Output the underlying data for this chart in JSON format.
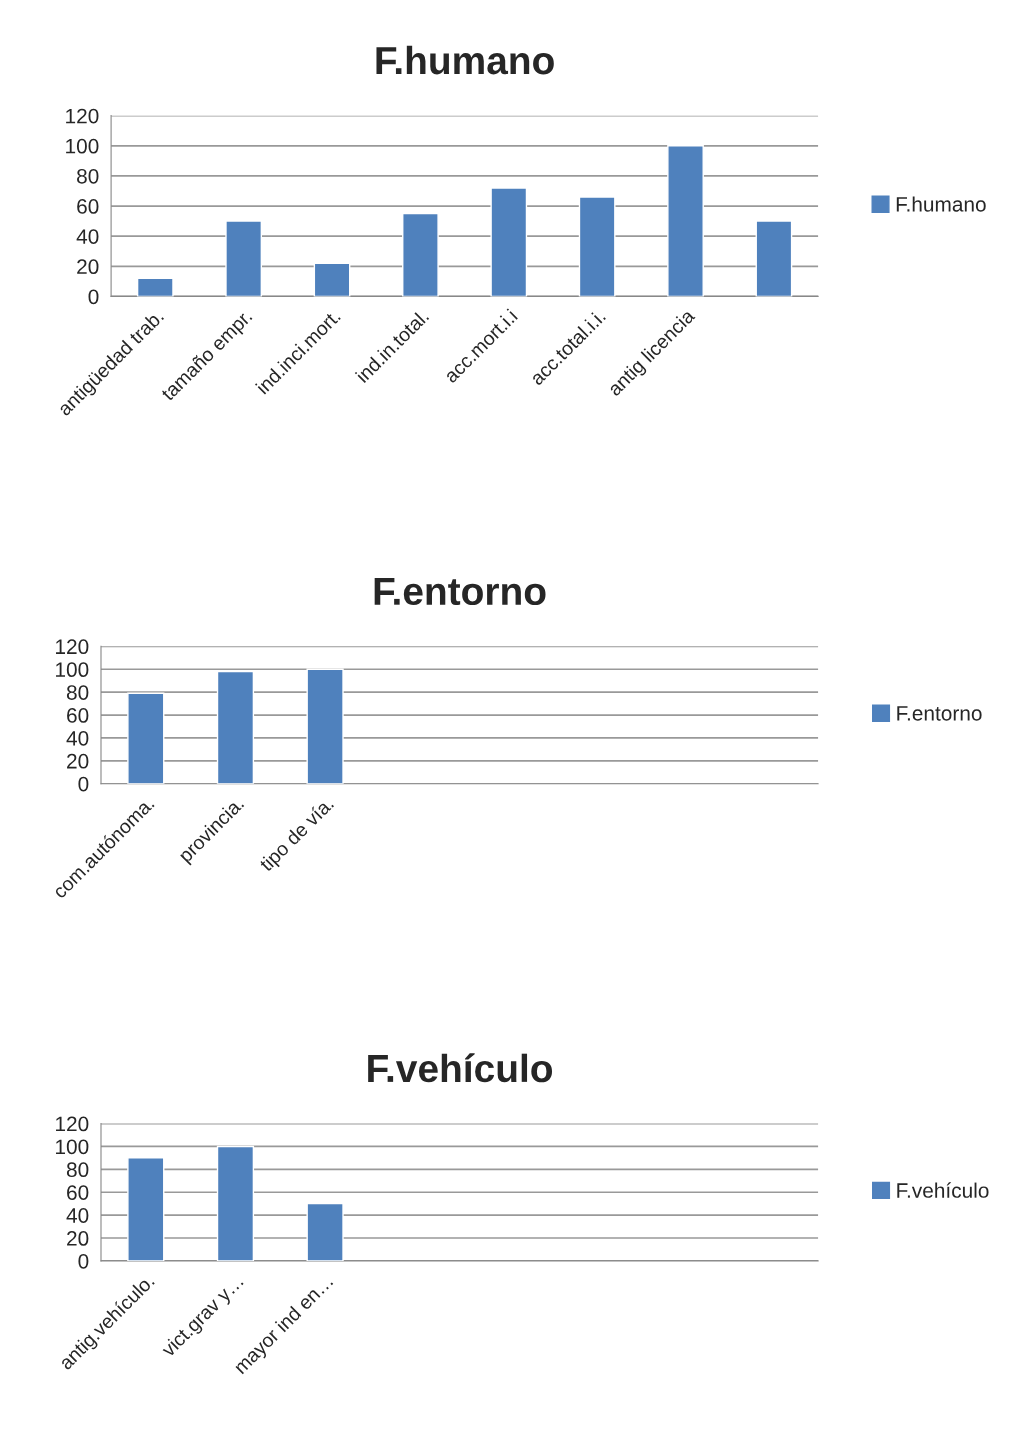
{
  "chart_data": [
    {
      "type": "bar",
      "title": "F.humano",
      "categories": [
        "antigüedad trab.",
        "tamaño empr.",
        "ind.inci.mort.",
        "ind.in.total.",
        "acc.mort.i.i",
        "acc.total.i.i.",
        "antig licencia",
        null
      ],
      "series": [
        {
          "name": "F.humano",
          "color": "#4f81bd",
          "values": [
            12,
            50,
            22,
            55,
            72,
            66,
            100,
            50
          ]
        }
      ],
      "ylim": [
        0,
        120
      ],
      "yticks": [
        0,
        20,
        40,
        60,
        80,
        100,
        120
      ],
      "grid": "y",
      "legend": "right"
    },
    {
      "type": "bar",
      "title": "F.entorno",
      "categories": [
        "com.autónoma.",
        "provincia.",
        "tipo de vía.",
        null,
        null,
        null,
        null,
        null
      ],
      "series": [
        {
          "name": "F.entorno",
          "color": "#4f81bd",
          "values": [
            79,
            98,
            100,
            null,
            null,
            null,
            null,
            null
          ]
        }
      ],
      "ylim": [
        0,
        120
      ],
      "yticks": [
        0,
        20,
        40,
        60,
        80,
        100,
        120
      ],
      "grid": "y",
      "legend": "right"
    },
    {
      "type": "bar",
      "title": "F.vehículo",
      "categories": [
        "antig.vehículo.",
        "vict.grav y…",
        "mayor ind en…",
        null,
        null,
        null,
        null,
        null
      ],
      "series": [
        {
          "name": "F.vehículo",
          "color": "#4f81bd",
          "values": [
            90,
            100,
            50,
            null,
            null,
            null,
            null,
            null
          ]
        }
      ],
      "ylim": [
        0,
        120
      ],
      "yticks": [
        0,
        20,
        40,
        60,
        80,
        100,
        120
      ],
      "grid": "y",
      "legend": "right"
    }
  ]
}
